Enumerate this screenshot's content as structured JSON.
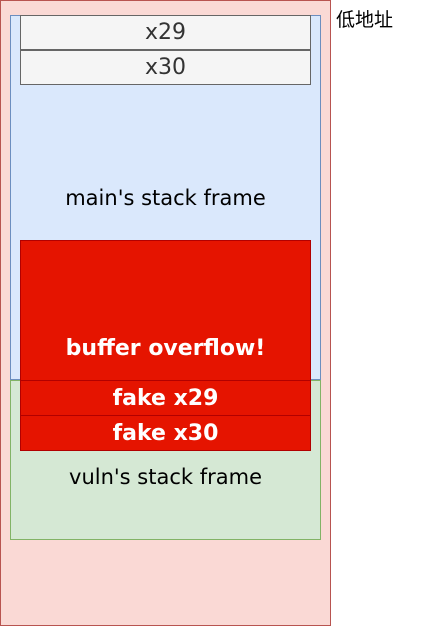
{
  "labels": {
    "low_address": "低地址",
    "main_frame": "main's stack frame",
    "vuln_frame": "vuln's stack frame"
  },
  "main_frame_registers": [
    "x29",
    "x30"
  ],
  "overflow": {
    "buffer_label": "buffer overflow!",
    "fake_x29": "fake x29",
    "fake_x30": "fake x30"
  },
  "colors": {
    "outer_fill": "#fad9d5",
    "main_frame_fill": "#dae8fc",
    "vuln_frame_fill": "#d5e8d4",
    "overflow_fill": "#e51400",
    "register_fill": "#f5f5f5"
  }
}
